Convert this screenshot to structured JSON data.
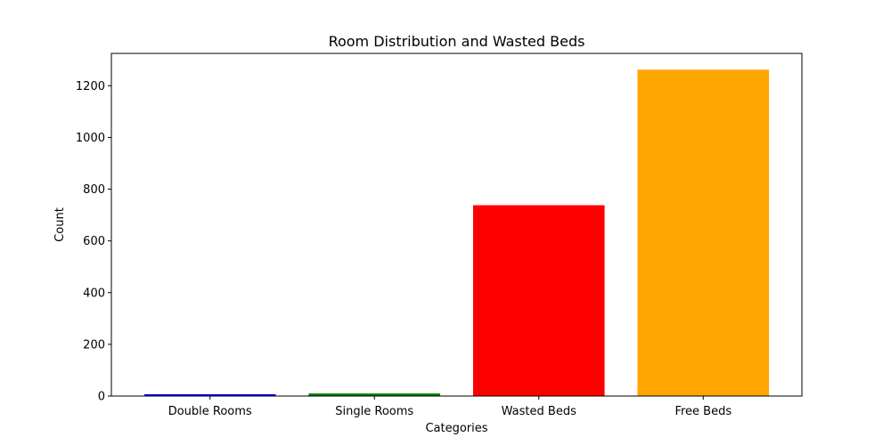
{
  "chart_data": {
    "type": "bar",
    "title": "Room Distribution and Wasted Beds",
    "xlabel": "Categories",
    "ylabel": "Count",
    "categories": [
      "Double Rooms",
      "Single Rooms",
      "Wasted Beds",
      "Free Beds"
    ],
    "values": [
      7,
      10,
      738,
      1262
    ],
    "colors": [
      "#0000ff",
      "#008000",
      "#ff0000",
      "#ffa500"
    ],
    "ylim": [
      0,
      1325
    ],
    "yticks": [
      0,
      200,
      400,
      600,
      800,
      1000,
      1200
    ],
    "grid": false,
    "legend": "none"
  }
}
